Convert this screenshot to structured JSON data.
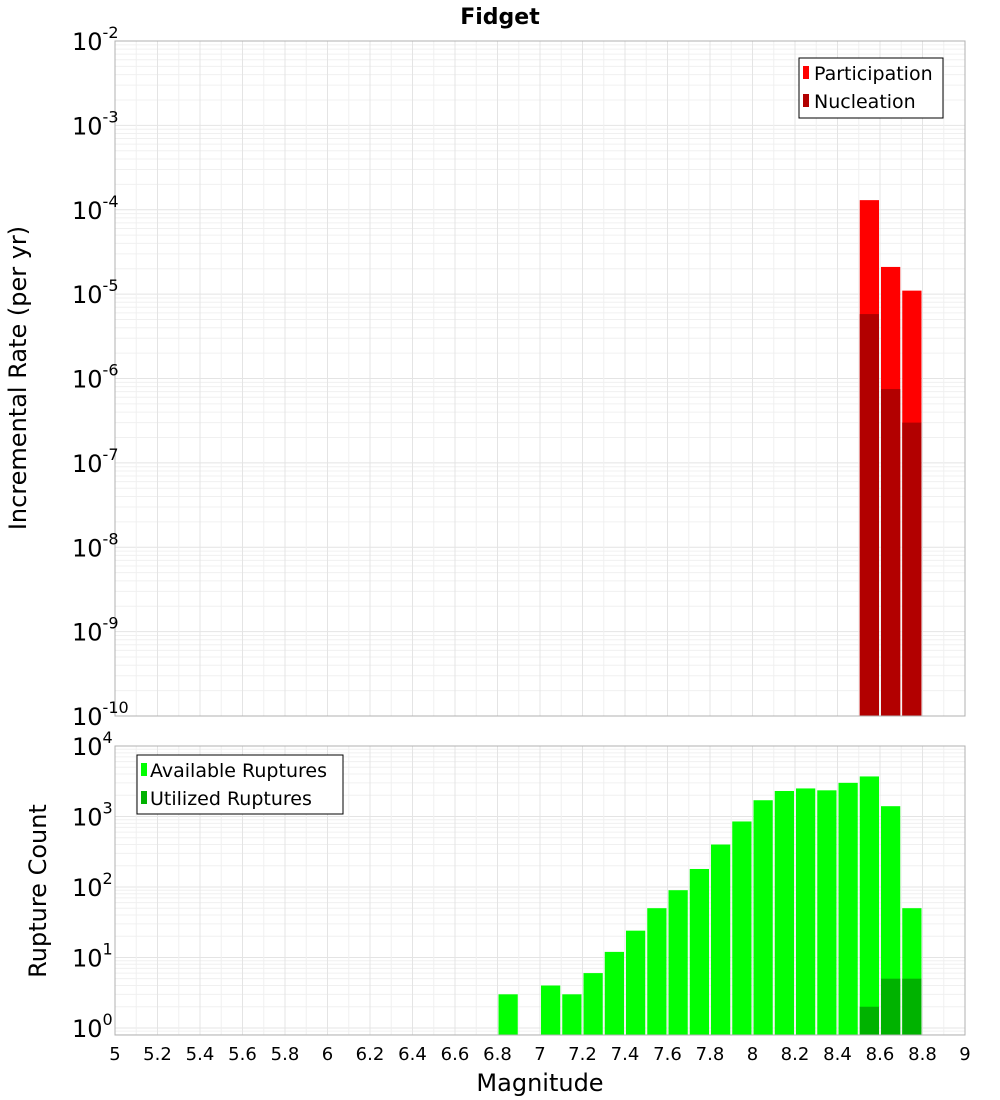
{
  "title": "Fidget",
  "chart_data": [
    {
      "type": "bar",
      "panel": "top",
      "scale": "log",
      "ylabel": "Incremental Rate (per yr)",
      "ylim_exponents": [
        -10,
        -2
      ],
      "y_tick_base": "10",
      "y_tick_exponents": [
        "-10",
        "-9",
        "-8",
        "-7",
        "-6",
        "-5",
        "-4",
        "-3",
        "-2"
      ],
      "bin_width": 0.1,
      "series": [
        {
          "name": "Participation",
          "color": "#ff0000",
          "x": [
            8.55,
            8.65,
            8.75
          ],
          "values": [
            0.00013,
            2.1e-05,
            1.1e-05
          ]
        },
        {
          "name": "Nucleation",
          "color": "#b20000",
          "x": [
            8.55,
            8.65,
            8.75
          ],
          "values": [
            5.8e-06,
            7.5e-07,
            3e-07
          ]
        }
      ],
      "legend_position": "top-right",
      "grid": true
    },
    {
      "type": "bar",
      "panel": "bottom",
      "scale": "log",
      "ylabel": "Rupture Count",
      "xlabel": "Magnitude",
      "ylim_exponents": [
        -0.1,
        4
      ],
      "y_tick_base": "10",
      "y_tick_exponents": [
        "0",
        "1",
        "2",
        "3",
        "4"
      ],
      "xlim": [
        5,
        9
      ],
      "x_ticks": [
        "5",
        "5.2",
        "5.4",
        "5.6",
        "5.8",
        "6",
        "6.2",
        "6.4",
        "6.6",
        "6.8",
        "7",
        "7.2",
        "7.4",
        "7.6",
        "7.8",
        "8",
        "8.2",
        "8.4",
        "8.6",
        "8.8",
        "9"
      ],
      "bin_width": 0.1,
      "series": [
        {
          "name": "Available Ruptures",
          "color": "#00ff00",
          "x": [
            6.85,
            7.05,
            7.15,
            7.25,
            7.35,
            7.45,
            7.55,
            7.65,
            7.75,
            7.85,
            7.95,
            8.05,
            8.15,
            8.25,
            8.35,
            8.45,
            8.55,
            8.65,
            8.75
          ],
          "values": [
            3,
            4,
            3,
            6,
            12,
            24,
            50,
            90,
            180,
            400,
            850,
            1700,
            2300,
            2500,
            2350,
            3000,
            3700,
            1400,
            50
          ]
        },
        {
          "name": "Utilized Ruptures",
          "color": "#00b200",
          "x": [
            8.55,
            8.65,
            8.75
          ],
          "values": [
            2,
            5,
            5
          ]
        }
      ],
      "legend_position": "top-left",
      "grid": true
    }
  ]
}
